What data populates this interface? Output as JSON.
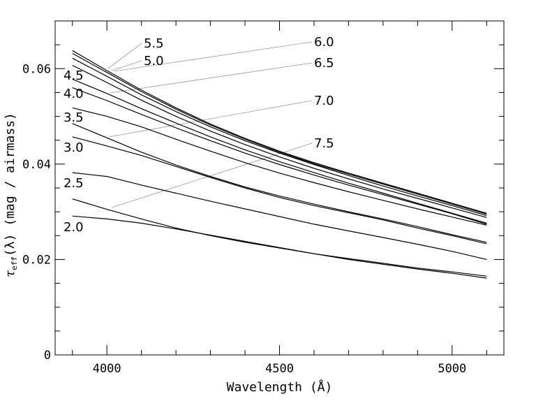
{
  "chart_data": {
    "type": "line",
    "title": "",
    "xlabel": "Wavelength (Å)",
    "ylabel_prefix": "τ",
    "ylabel_sub": "eff",
    "ylabel_suffix": "(λ) (mag / airmass)",
    "xlim": [
      3850,
      5150
    ],
    "ylim": [
      0,
      0.07
    ],
    "x_ticks": [
      4000,
      4500,
      5000
    ],
    "x_tick_labels": [
      "4000",
      "4500",
      "5000"
    ],
    "y_ticks": [
      0,
      0.02,
      0.04,
      0.06
    ],
    "y_tick_labels": [
      "0",
      "0.02",
      "0.04",
      "0.06"
    ],
    "grid": false,
    "line_color": "#000000",
    "leader_color": "#999999",
    "x": [
      3900,
      4000,
      4100,
      4200,
      4300,
      4400,
      4500,
      4600,
      4700,
      4800,
      4900,
      5000,
      5100
    ],
    "series": [
      {
        "name": "2.0",
        "values": [
          0.0291,
          0.0285,
          0.0276,
          0.0264,
          0.0251,
          0.0238,
          0.0225,
          0.0212,
          0.02,
          0.019,
          0.018,
          0.0171,
          0.0161
        ]
      },
      {
        "name": "2.5",
        "values": [
          0.0327,
          0.0305,
          0.0285,
          0.0266,
          0.025,
          0.0236,
          0.0224,
          0.0212,
          0.0202,
          0.0192,
          0.0182,
          0.0174,
          0.0165
        ]
      },
      {
        "name": "3.0",
        "values": [
          0.0382,
          0.0374,
          0.0356,
          0.0339,
          0.0322,
          0.0306,
          0.029,
          0.0274,
          0.026,
          0.0246,
          0.0232,
          0.0217,
          0.02
        ]
      },
      {
        "name": "3.5",
        "values": [
          0.0457,
          0.0438,
          0.0418,
          0.0395,
          0.0372,
          0.035,
          0.033,
          0.0313,
          0.0298,
          0.0283,
          0.0266,
          0.025,
          0.0233
        ]
      },
      {
        "name": "4.0",
        "values": [
          0.0485,
          0.0455,
          0.0425,
          0.0398,
          0.0374,
          0.0352,
          0.0333,
          0.0316,
          0.03,
          0.0285,
          0.0269,
          0.0252,
          0.0236
        ]
      },
      {
        "name": "4.5",
        "values": [
          0.0518,
          0.05,
          0.0478,
          0.0452,
          0.0427,
          0.0403,
          0.0381,
          0.0361,
          0.0342,
          0.0324,
          0.0306,
          0.0289,
          0.0272
        ]
      },
      {
        "name": "5.0",
        "values": [
          0.056,
          0.0533,
          0.0504,
          0.0476,
          0.0449,
          0.0423,
          0.0399,
          0.0377,
          0.0356,
          0.0336,
          0.0316,
          0.0296,
          0.0274
        ]
      },
      {
        "name": "5.5",
        "values": [
          0.0578,
          0.0548,
          0.0516,
          0.0486,
          0.0457,
          0.043,
          0.0405,
          0.0382,
          0.036,
          0.0339,
          0.0318,
          0.0297,
          0.0276
        ]
      },
      {
        "name": "6.0",
        "values": [
          0.0607,
          0.0571,
          0.0534,
          0.05,
          0.0469,
          0.0441,
          0.0415,
          0.0391,
          0.0369,
          0.0348,
          0.0328,
          0.0308,
          0.0288
        ]
      },
      {
        "name": "6.5",
        "values": [
          0.0622,
          0.0584,
          0.0545,
          0.051,
          0.0478,
          0.0449,
          0.0423,
          0.0399,
          0.0376,
          0.0354,
          0.0333,
          0.0313,
          0.0292
        ]
      },
      {
        "name": "7.0",
        "values": [
          0.0632,
          0.0592,
          0.0552,
          0.0515,
          0.0482,
          0.0452,
          0.0425,
          0.0401,
          0.0379,
          0.0358,
          0.0337,
          0.0316,
          0.0295
        ]
      },
      {
        "name": "7.5",
        "values": [
          0.0638,
          0.0596,
          0.0555,
          0.0518,
          0.0484,
          0.0454,
          0.0427,
          0.0403,
          0.0381,
          0.036,
          0.0339,
          0.0318,
          0.0297
        ]
      }
    ]
  }
}
